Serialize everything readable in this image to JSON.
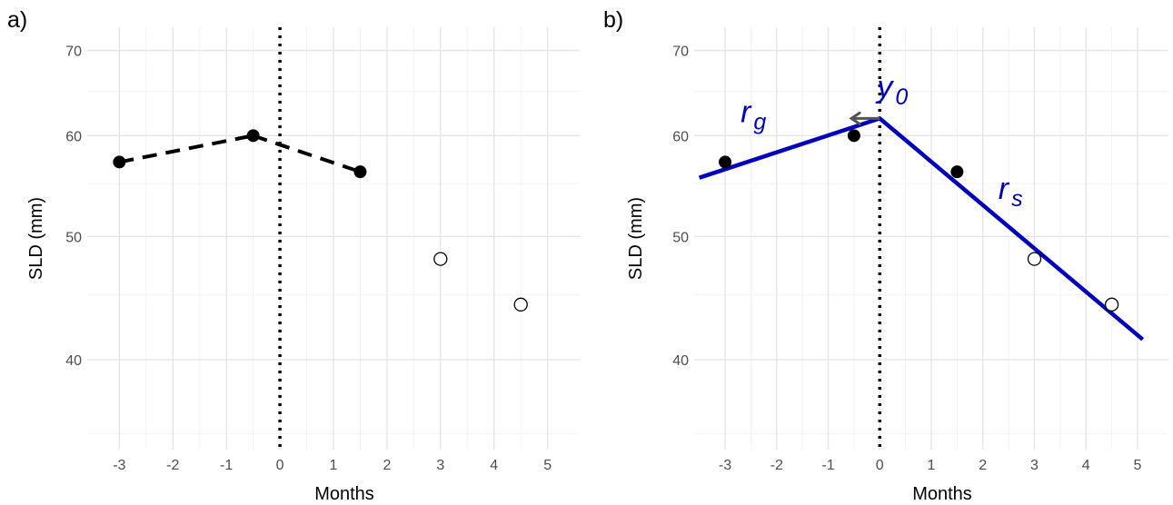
{
  "chart_data": [
    {
      "type": "line",
      "panel_label": "a)",
      "xlabel": "Months",
      "ylabel": "SLD (mm)",
      "xlim": [
        -3.6,
        5.6
      ],
      "ylim": [
        34,
        73
      ],
      "y_scale": "log",
      "grid": true,
      "x_ticks": [
        -3,
        -2,
        -1,
        0,
        1,
        2,
        3,
        4,
        5
      ],
      "x_tick_labels": [
        "-3",
        "-2",
        "-1",
        "0",
        "1",
        "2",
        "3",
        "4",
        "5"
      ],
      "y_ticks": [
        40,
        50,
        60,
        70
      ],
      "y_tick_labels": [
        "40",
        "50",
        "60",
        "70"
      ],
      "reference_line": {
        "x": 0,
        "style": "dotted",
        "color": "#000000"
      },
      "observed_points": [
        {
          "x": -3,
          "y": 57.2
        },
        {
          "x": -0.5,
          "y": 60.0
        },
        {
          "x": 1.5,
          "y": 56.2
        }
      ],
      "censored_points": [
        {
          "x": 3,
          "y": 48.0
        },
        {
          "x": 4.5,
          "y": 44.2
        }
      ],
      "dashed_segments": [
        [
          -3,
          57.2,
          -0.5,
          60.0
        ],
        [
          -0.5,
          60.0,
          1.5,
          56.2
        ]
      ],
      "colors": {
        "points": "#000000",
        "dashed_line": "#000000"
      }
    },
    {
      "type": "line",
      "panel_label": "b)",
      "xlabel": "Months",
      "ylabel": "SLD (mm)",
      "xlim": [
        -3.6,
        5.6
      ],
      "ylim": [
        34,
        73
      ],
      "y_scale": "log",
      "grid": true,
      "x_ticks": [
        -3,
        -2,
        -1,
        0,
        1,
        2,
        3,
        4,
        5
      ],
      "x_tick_labels": [
        "-3",
        "-2",
        "-1",
        "0",
        "1",
        "2",
        "3",
        "4",
        "5"
      ],
      "y_ticks": [
        40,
        50,
        60,
        70
      ],
      "y_tick_labels": [
        "40",
        "50",
        "60",
        "70"
      ],
      "reference_line": {
        "x": 0,
        "style": "dotted",
        "color": "#000000"
      },
      "observed_points": [
        {
          "x": -3,
          "y": 57.2
        },
        {
          "x": -0.5,
          "y": 60.0
        },
        {
          "x": 1.5,
          "y": 56.2
        }
      ],
      "censored_points": [
        {
          "x": 3,
          "y": 48.0
        },
        {
          "x": 4.5,
          "y": 44.2
        }
      ],
      "fit_line": [
        {
          "x": -3.5,
          "y": 55.6
        },
        {
          "x": 0,
          "y": 61.9
        },
        {
          "x": 5.1,
          "y": 41.5
        }
      ],
      "arrow": {
        "from": {
          "x": 0,
          "y": 61.9
        },
        "to": {
          "x": -0.55,
          "y": 61.9
        },
        "color": "#555555"
      },
      "annotations": [
        {
          "base": "r",
          "sub": "g",
          "x": -2.7,
          "y": 61.5
        },
        {
          "base": "y",
          "sub": "0",
          "x": -0.05,
          "y": 64.3
        },
        {
          "base": "r",
          "sub": "s",
          "x": 2.3,
          "y": 53.5
        }
      ],
      "colors": {
        "fit_line": "#0000bb",
        "points": "#000000",
        "annotations": "#0000bb"
      }
    }
  ]
}
